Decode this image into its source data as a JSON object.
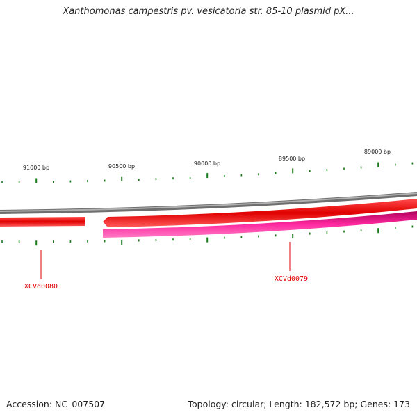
{
  "title": "Xanthomonas campestris pv. vesicatoria str. 85-10 plasmid pX...",
  "ticks": {
    "major": [
      {
        "label": "91000 bp",
        "bp": 91000
      },
      {
        "label": "90500 bp",
        "bp": 90500
      },
      {
        "label": "90000 bp",
        "bp": 90000
      },
      {
        "label": "89500 bp",
        "bp": 89500
      },
      {
        "label": "89000 bp",
        "bp": 89000
      }
    ]
  },
  "features": [
    {
      "label": "XCVd0080",
      "color": "#e00000",
      "strand": "forward"
    },
    {
      "label": "XCVd0079",
      "color": "#e0007a",
      "strand": "reverse"
    }
  ],
  "colors": {
    "backbone": "#888888",
    "forward_gene": "#e00000",
    "reverse_gene": "#e0007a",
    "tick": "#1a7a1a",
    "feature_label": "#e00000"
  },
  "footer": {
    "accession": "Accession: NC_007507",
    "summary": "Topology: circular; Length: 182,572 bp; Genes: 173"
  }
}
